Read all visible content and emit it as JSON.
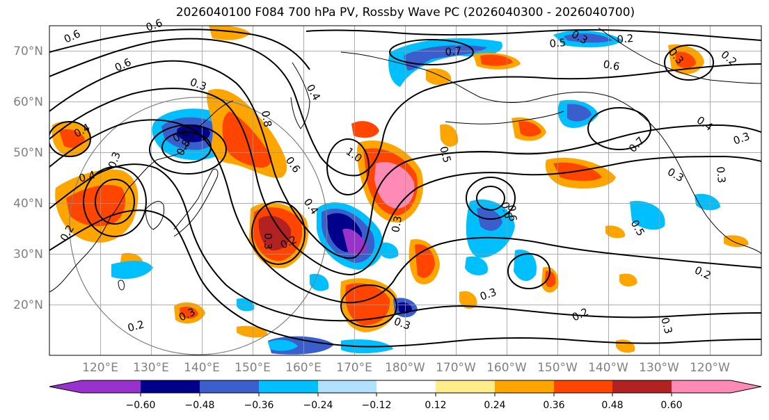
{
  "title": "2026040100 F084 700 hPa PV, Rossby Wave PC (2026040300 - 2026040700)",
  "latitude_labels": [
    "70°N",
    "60°N",
    "50°N",
    "40°N",
    "30°N",
    "20°N"
  ],
  "longitude_labels": [
    "120°E",
    "130°E",
    "140°E",
    "150°E",
    "160°E",
    "170°E",
    "180°W",
    "170°W",
    "160°W",
    "150°W",
    "140°W",
    "130°W",
    "120°W"
  ],
  "colorbar": {
    "tick_labels": [
      "−0.60",
      "−0.48",
      "−0.36",
      "−0.24",
      "−0.12",
      "0.12",
      "0.24",
      "0.36",
      "0.48",
      "0.60"
    ],
    "colors": [
      "#9932cc",
      "#00008b",
      "#3a5fcd",
      "#00bfff",
      "#b0e2ff",
      "#ffffff",
      "#ffec8b",
      "#ffa500",
      "#ff4500",
      "#b22222",
      "#ff8ab6"
    ]
  },
  "contour_labels": [
    {
      "text": "0.6"
    },
    {
      "text": "0.6"
    },
    {
      "text": "0.6"
    },
    {
      "text": "0.3"
    },
    {
      "text": "0.4"
    },
    {
      "text": "0.4"
    },
    {
      "text": "0.3"
    },
    {
      "text": "0.2"
    },
    {
      "text": "0.6"
    },
    {
      "text": "0.8"
    },
    {
      "text": "0.8"
    },
    {
      "text": "0.6"
    },
    {
      "text": "1.0"
    },
    {
      "text": "0.4"
    },
    {
      "text": "0.3"
    },
    {
      "text": "0.2"
    },
    {
      "text": "0.3"
    },
    {
      "text": "0.3"
    },
    {
      "text": "0.2"
    },
    {
      "text": "0.4"
    },
    {
      "text": "0.7"
    },
    {
      "text": "0.5"
    },
    {
      "text": "0.3"
    },
    {
      "text": "0.2"
    },
    {
      "text": "0.6"
    },
    {
      "text": "0.5"
    },
    {
      "text": "0.6"
    },
    {
      "text": "0.4"
    },
    {
      "text": "0.3"
    },
    {
      "text": "0.3"
    },
    {
      "text": "0.5"
    },
    {
      "text": "0.3"
    },
    {
      "text": "0.2"
    },
    {
      "text": "0.3"
    },
    {
      "text": "0.2"
    },
    {
      "text": "0.3"
    },
    {
      "text": "0.3"
    },
    {
      "text": "0.2"
    },
    {
      "text": "0.7"
    },
    {
      "text": "0.3"
    },
    {
      "text": "0.6"
    }
  ]
}
